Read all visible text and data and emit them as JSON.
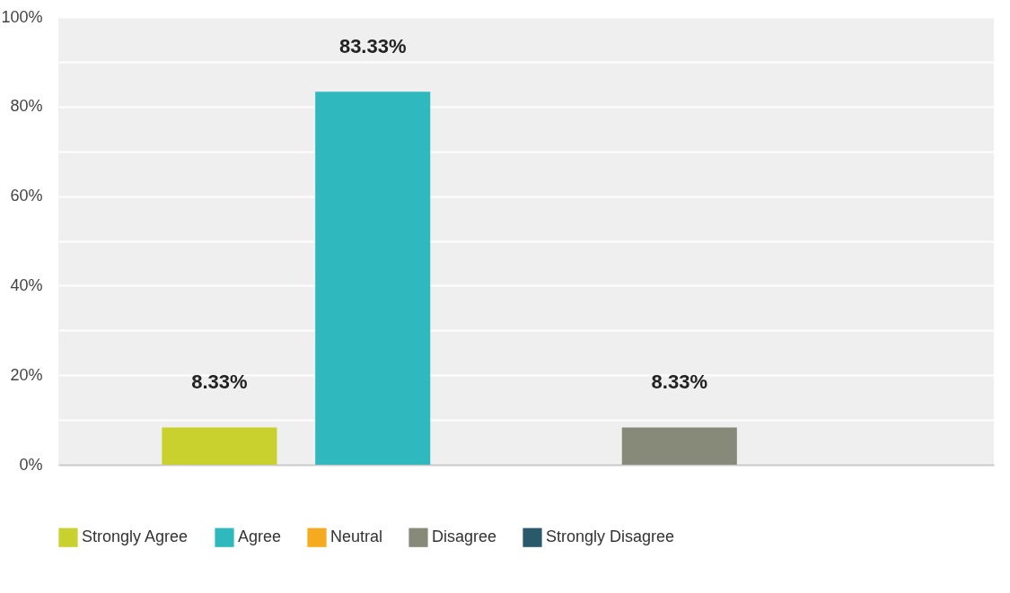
{
  "chart_data": {
    "type": "bar",
    "categories": [
      null
    ],
    "series": [
      {
        "name": "Strongly Agree",
        "color": "#c9d12e",
        "values": [
          8.33
        ],
        "value_labels": [
          "8.33%"
        ]
      },
      {
        "name": "Agree",
        "color": "#2fb9bf",
        "values": [
          83.33
        ],
        "value_labels": [
          "83.33%"
        ]
      },
      {
        "name": "Neutral",
        "color": "#f5ab1f",
        "values": [
          0
        ],
        "value_labels": [
          null
        ]
      },
      {
        "name": "Disagree",
        "color": "#878a78",
        "values": [
          8.33
        ],
        "value_labels": [
          "8.33%"
        ]
      },
      {
        "name": "Strongly Disagree",
        "color": "#2a5a6a",
        "values": [
          0
        ],
        "value_labels": [
          null
        ]
      }
    ],
    "ylim": [
      0,
      100
    ],
    "yticks": [
      {
        "value": 0,
        "label": "0%"
      },
      {
        "value": 10,
        "label": null
      },
      {
        "value": 20,
        "label": "20%"
      },
      {
        "value": 30,
        "label": null
      },
      {
        "value": 40,
        "label": "40%"
      },
      {
        "value": 50,
        "label": null
      },
      {
        "value": 60,
        "label": "60%"
      },
      {
        "value": 70,
        "label": null
      },
      {
        "value": 80,
        "label": "80%"
      },
      {
        "value": 90,
        "label": null
      },
      {
        "value": 100,
        "label": "100%"
      }
    ],
    "grid": true,
    "legend": "bottom",
    "tick_labels": "y"
  }
}
